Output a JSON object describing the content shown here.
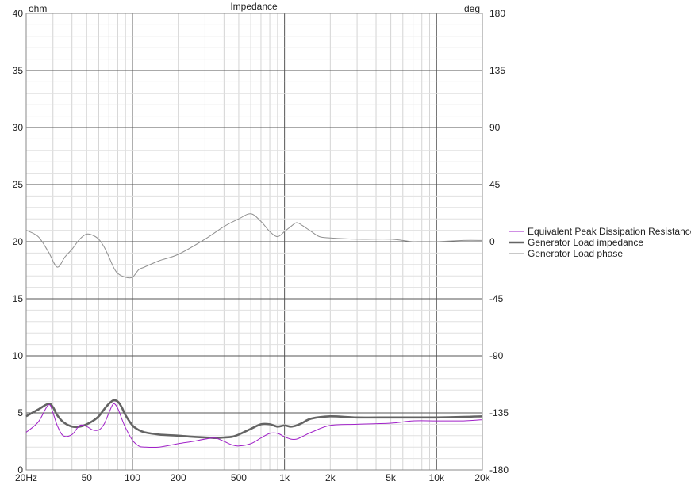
{
  "chart_data": {
    "type": "line",
    "title": "Impedance",
    "y_left_unit": "ohm",
    "y_right_unit": "deg",
    "x_scale": "log",
    "xlim": [
      20,
      20000
    ],
    "ylim_left": [
      0,
      40
    ],
    "ylim_right": [
      -180,
      180
    ],
    "grid": true,
    "legend_position": "right",
    "x_tick_labels": [
      {
        "v": 20,
        "t": "20Hz"
      },
      {
        "v": 50,
        "t": "50"
      },
      {
        "v": 100,
        "t": "100"
      },
      {
        "v": 200,
        "t": "200"
      },
      {
        "v": 500,
        "t": "500"
      },
      {
        "v": 1000,
        "t": "1k"
      },
      {
        "v": 2000,
        "t": "2k"
      },
      {
        "v": 5000,
        "t": "5k"
      },
      {
        "v": 10000,
        "t": "10k"
      },
      {
        "v": 20000,
        "t": "20k"
      }
    ],
    "y_left_ticks": [
      0,
      5,
      10,
      15,
      20,
      25,
      30,
      35,
      40
    ],
    "y_right_ticks": [
      -180,
      -135,
      -90,
      -45,
      0,
      45,
      90,
      135,
      180
    ],
    "series": [
      {
        "name": "Equivalent Peak Dissipation Resistance",
        "axis": "left",
        "color": "#a020c8",
        "x": [
          20,
          24,
          28,
          30,
          32,
          35,
          40,
          45,
          50,
          55,
          60,
          65,
          70,
          75,
          80,
          85,
          90,
          100,
          110,
          120,
          150,
          200,
          250,
          300,
          350,
          400,
          450,
          500,
          600,
          700,
          800,
          900,
          1000,
          1100,
          1200,
          1300,
          1500,
          2000,
          3000,
          5000,
          7000,
          10000,
          15000,
          20000
        ],
        "y": [
          3.3,
          4.2,
          5.7,
          5.0,
          3.9,
          3.0,
          3.1,
          3.9,
          3.8,
          3.5,
          3.5,
          4.0,
          5.0,
          5.8,
          5.4,
          4.5,
          3.7,
          2.6,
          2.1,
          2.0,
          2.0,
          2.3,
          2.5,
          2.7,
          2.8,
          2.5,
          2.2,
          2.1,
          2.3,
          2.8,
          3.2,
          3.2,
          2.9,
          2.7,
          2.7,
          2.9,
          3.3,
          3.9,
          4.0,
          4.1,
          4.3,
          4.3,
          4.3,
          4.4
        ]
      },
      {
        "name": "Generator Load impedance",
        "axis": "left",
        "color": "#646464",
        "x": [
          20,
          24,
          28,
          30,
          32,
          35,
          40,
          45,
          50,
          55,
          60,
          65,
          70,
          75,
          80,
          85,
          90,
          100,
          110,
          120,
          150,
          200,
          250,
          300,
          350,
          400,
          450,
          500,
          600,
          700,
          800,
          900,
          1000,
          1100,
          1200,
          1300,
          1500,
          2000,
          3000,
          5000,
          7000,
          10000,
          15000,
          20000
        ],
        "y": [
          4.7,
          5.3,
          5.8,
          5.5,
          4.8,
          4.2,
          3.8,
          3.8,
          4.0,
          4.3,
          4.7,
          5.3,
          5.8,
          6.1,
          6.0,
          5.5,
          4.8,
          3.9,
          3.5,
          3.3,
          3.1,
          3.0,
          2.9,
          2.85,
          2.8,
          2.85,
          2.9,
          3.1,
          3.6,
          4.0,
          4.0,
          3.8,
          3.9,
          3.8,
          3.9,
          4.1,
          4.5,
          4.7,
          4.6,
          4.6,
          4.6,
          4.6,
          4.65,
          4.7
        ]
      },
      {
        "name": "Generator Load phase",
        "axis": "right",
        "color": "#909090",
        "x": [
          20,
          24,
          28,
          32,
          36,
          40,
          45,
          50,
          55,
          60,
          65,
          70,
          75,
          80,
          90,
          100,
          110,
          120,
          150,
          200,
          300,
          400,
          500,
          600,
          700,
          800,
          900,
          1000,
          1100,
          1200,
          1300,
          1500,
          1700,
          2000,
          3000,
          5000,
          7000,
          10000,
          15000,
          20000
        ],
        "y": [
          9,
          4,
          -8,
          -20,
          -12,
          -6,
          2,
          6,
          5,
          2,
          -4,
          -12,
          -20,
          -25,
          -28,
          -28,
          -22,
          -20,
          -15,
          -10,
          2,
          12,
          18,
          22,
          16,
          8,
          4,
          8,
          12,
          15,
          13,
          8,
          4,
          3,
          2,
          2,
          0,
          0,
          1,
          1
        ]
      }
    ]
  }
}
